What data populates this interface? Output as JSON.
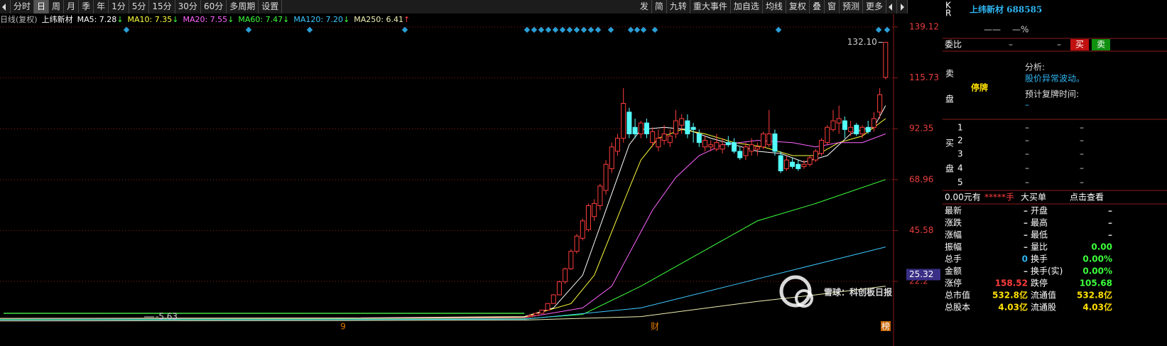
{
  "toolbar": {
    "left": [
      "分时",
      "日",
      "周",
      "月",
      "季",
      "年",
      "1分",
      "5分",
      "15分",
      "30分",
      "60分",
      "多周期",
      "设置"
    ],
    "right": [
      "发",
      "简",
      "九转",
      "重大事件",
      "加自选",
      "均线",
      "复权",
      "叠",
      "窗",
      "预测",
      "更多"
    ]
  },
  "info": {
    "period": "日线(复权)",
    "stock": "上纬新材"
  },
  "chart_data": {
    "type": "candlestick",
    "up_color": "#ff3c3c",
    "down_color": "#54fcfc",
    "ohlc": [
      [
        6,
        7,
        5.8,
        6.5
      ],
      [
        6.5,
        7.8,
        6.4,
        7.5
      ],
      [
        7.5,
        9.2,
        7.4,
        9
      ],
      [
        9,
        12.2,
        8.9,
        12
      ],
      [
        12,
        16.3,
        11.8,
        16
      ],
      [
        16,
        22.5,
        15.8,
        22
      ],
      [
        22,
        28.5,
        21,
        28
      ],
      [
        28,
        37,
        27.5,
        36
      ],
      [
        36,
        44,
        35,
        43
      ],
      [
        42,
        51,
        41,
        50
      ],
      [
        46,
        58,
        45,
        57
      ],
      [
        52,
        60,
        50,
        58
      ],
      [
        57,
        67,
        55,
        66
      ],
      [
        64,
        78,
        62,
        76
      ],
      [
        74,
        86,
        72,
        84
      ],
      [
        82,
        90,
        80,
        88
      ],
      [
        88,
        111,
        86,
        104
      ],
      [
        100,
        102,
        88,
        90
      ],
      [
        93,
        97,
        88,
        90
      ],
      [
        90,
        96,
        88,
        95
      ],
      [
        95,
        97,
        88,
        90
      ],
      [
        86,
        93,
        84,
        91
      ],
      [
        84,
        92,
        82,
        88
      ],
      [
        87,
        94,
        85,
        90
      ],
      [
        86,
        92,
        84,
        89
      ],
      [
        90,
        101,
        88,
        96
      ],
      [
        94,
        99,
        90,
        97
      ],
      [
        96,
        99,
        88,
        90
      ],
      [
        93,
        95,
        86,
        92
      ],
      [
        90,
        92,
        84,
        86
      ],
      [
        84,
        89,
        82,
        87
      ],
      [
        84,
        87,
        82,
        85
      ],
      [
        83,
        90,
        82,
        86
      ],
      [
        83,
        88,
        81,
        85
      ],
      [
        86,
        89,
        84,
        85
      ],
      [
        86,
        88,
        81,
        82
      ],
      [
        82,
        84,
        78,
        79
      ],
      [
        80,
        86,
        78,
        84
      ],
      [
        82,
        88,
        80,
        85
      ],
      [
        83,
        86,
        80,
        84
      ],
      [
        84,
        91,
        83,
        90
      ],
      [
        85,
        101,
        84,
        90
      ],
      [
        90,
        92,
        80,
        82
      ],
      [
        80,
        82,
        72,
        73
      ],
      [
        74,
        80,
        73,
        78
      ],
      [
        77,
        79,
        74,
        75
      ],
      [
        76,
        78,
        73,
        74
      ],
      [
        75,
        78,
        74,
        76
      ],
      [
        76,
        80,
        75,
        79
      ],
      [
        78,
        83,
        77,
        82
      ],
      [
        81,
        88,
        80,
        87
      ],
      [
        86,
        94,
        85,
        93
      ],
      [
        92,
        101,
        91,
        96
      ],
      [
        95,
        103,
        90,
        97
      ],
      [
        96,
        98,
        88,
        92
      ],
      [
        91,
        96,
        89,
        93
      ],
      [
        94,
        95,
        89,
        90
      ],
      [
        90,
        94,
        88,
        93
      ],
      [
        93,
        96,
        90,
        91
      ],
      [
        93,
        100,
        91,
        97
      ],
      [
        100,
        111,
        97,
        108
      ],
      [
        116,
        132.1,
        115,
        132.1
      ]
    ],
    "series": [
      {
        "name": "MA5: 7.28",
        "trend": "↓",
        "color": "#ffffff",
        "x": [
          -90,
          -30,
          0,
          5,
          10,
          12,
          14,
          16,
          18,
          20,
          24,
          28,
          32,
          36,
          40,
          44,
          48,
          52,
          56,
          58,
          60,
          62
        ],
        "values": [
          5.2,
          5.4,
          6,
          10,
          25,
          40,
          55,
          70,
          85,
          92,
          93,
          92,
          88,
          85,
          82,
          81,
          77,
          80,
          90,
          92,
          93,
          103
        ]
      },
      {
        "name": "MA10: 7.35",
        "trend": "↓",
        "color": "#ffff3c",
        "x": [
          -90,
          -30,
          0,
          8,
          12,
          15,
          18,
          20,
          23,
          27,
          31,
          36,
          41,
          46,
          50,
          54,
          58,
          62
        ],
        "values": [
          5.1,
          5.3,
          5.8,
          12,
          25,
          45,
          65,
          78,
          88,
          92,
          90,
          86,
          84,
          80,
          80,
          86,
          89,
          97
        ]
      },
      {
        "name": "MA20: 7.55",
        "trend": "↓",
        "color": "#ff64ff",
        "x": [
          -90,
          -30,
          0,
          10,
          15,
          18,
          22,
          26,
          30,
          34,
          40,
          46,
          50,
          54,
          58,
          62
        ],
        "values": [
          5,
          5.2,
          5.5,
          10,
          20,
          35,
          55,
          70,
          80,
          85,
          87,
          86,
          84,
          86,
          86,
          90
        ]
      },
      {
        "name": "MA60: 7.47",
        "trend": "↓",
        "color": "#3cff3c",
        "x": [
          -90,
          -30,
          0,
          10,
          20,
          30,
          40,
          50,
          62
        ],
        "values": [
          4.8,
          5,
          5,
          7,
          20,
          35,
          50,
          58,
          69
        ]
      },
      {
        "name": "MA120: 7.20",
        "trend": "↓",
        "color": "#3cc8ff",
        "x": [
          -90,
          -30,
          0,
          20,
          35,
          50,
          62
        ],
        "values": [
          4.5,
          4.6,
          4.8,
          10,
          20,
          30,
          38
        ]
      },
      {
        "name": "MA250: 6.41",
        "trend": "↑",
        "color": "#f0f0b4",
        "x": [
          -90,
          -30,
          0,
          20,
          40,
          50,
          62
        ],
        "values": [
          4,
          4.2,
          4.4,
          6,
          13,
          16,
          20
        ]
      }
    ],
    "xlim": [
      -90,
      63
    ],
    "ylim": [
      0,
      145
    ],
    "yticks": [
      139.12,
      115.73,
      92.35,
      68.96,
      45.58,
      22.2
    ],
    "current": 25.32,
    "max_label": {
      "value": 132.1,
      "label": "132.10"
    },
    "min_label": -5.63,
    "x_markers": [
      "9",
      "财",
      "榜"
    ]
  },
  "panel": {
    "flags": [
      "K",
      "R"
    ],
    "title": "上纬新材 688585",
    "change": "——",
    "pct": "—%",
    "weibi": {
      "label": "委比",
      "v1": "–",
      "v2": "–",
      "buy": "买",
      "sell": "卖"
    },
    "sell": {
      "label": [
        "卖",
        "盘"
      ],
      "status": "停牌",
      "analysis": "分析:",
      "reason": "股价异常波动。",
      "resume": "预计复牌时间:",
      "resume_value": "–"
    },
    "buy": {
      "label": [
        "买",
        "盘"
      ],
      "rows": [
        [
          "1",
          "–",
          "–"
        ],
        [
          "2",
          "–",
          "–"
        ],
        [
          "3",
          "–",
          "–"
        ],
        [
          "4",
          "–",
          "–"
        ],
        [
          "5",
          "–",
          "–"
        ]
      ]
    },
    "bigorder": [
      "0.00元有",
      "*****手",
      "大买单",
      "点击查看"
    ],
    "quote": [
      [
        "最新",
        "–",
        "开盘",
        "–"
      ],
      [
        "涨跌",
        "–",
        "最高",
        "–"
      ],
      [
        "涨幅",
        "–",
        "最低",
        "–"
      ],
      [
        "振幅",
        "–",
        "量比",
        "0.00"
      ],
      [
        "总手",
        "0",
        "换手",
        "0.00%"
      ],
      [
        "金额",
        "–",
        "换手(实)",
        "0.00%"
      ],
      [
        "涨停",
        "158.52",
        "跌停",
        "105.68"
      ],
      [
        "总市值",
        "532.8亿",
        "流通值",
        "532.8亿"
      ],
      [
        "总股本",
        "4.03亿",
        "流通股",
        "4.03亿"
      ]
    ]
  },
  "watermark": "雪球：科创板日报"
}
